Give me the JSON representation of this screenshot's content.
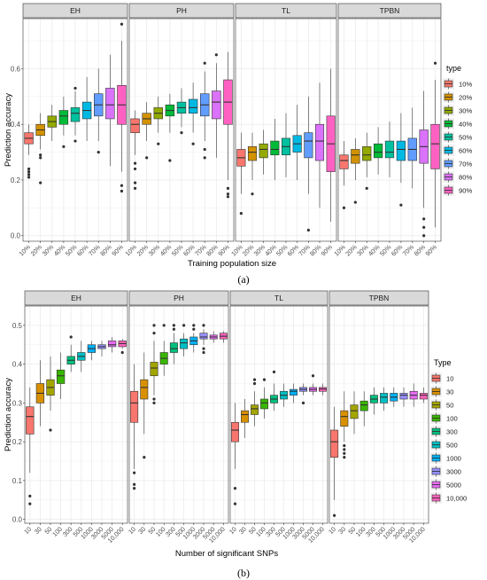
{
  "chart_data": [
    {
      "type": "box",
      "panel_label": "(a)",
      "ylabel": "Prediction accuracy",
      "xlabel": "Training population size",
      "categories": [
        "10%",
        "20%",
        "30%",
        "40%",
        "50%",
        "60%",
        "70%",
        "80%",
        "90%"
      ],
      "ylim": [
        -0.02,
        0.78
      ],
      "yticks": [
        0.0,
        0.2,
        0.4,
        0.6
      ],
      "ytick_labels": [
        "0.0",
        "0.2",
        "0.4",
        "0.6"
      ],
      "grid": true,
      "legend": {
        "title": "type",
        "position": "right",
        "labels": [
          "10%",
          "20%",
          "30%",
          "40%",
          "50%",
          "60%",
          "70%",
          "80%",
          "90%"
        ],
        "colors": [
          "#F8766D",
          "#D39200",
          "#93AA00",
          "#00BA38",
          "#00C19F",
          "#00B9E3",
          "#619CFF",
          "#DB72FB",
          "#FF61C3"
        ]
      },
      "facets": [
        {
          "label": "EH",
          "boxes": [
            {
              "q1": 0.33,
              "median": 0.35,
              "q3": 0.37,
              "lo": 0.29,
              "hi": 0.4,
              "outliers": [
                0.24,
                0.23,
                0.22,
                0.21
              ]
            },
            {
              "q1": 0.36,
              "median": 0.38,
              "q3": 0.4,
              "lo": 0.31,
              "hi": 0.44,
              "outliers": [
                0.29,
                0.28,
                0.19
              ]
            },
            {
              "q1": 0.39,
              "median": 0.41,
              "q3": 0.43,
              "lo": 0.34,
              "hi": 0.47,
              "outliers": []
            },
            {
              "q1": 0.4,
              "median": 0.43,
              "q3": 0.45,
              "lo": 0.36,
              "hi": 0.5,
              "outliers": [
                0.32
              ]
            },
            {
              "q1": 0.41,
              "median": 0.44,
              "q3": 0.46,
              "lo": 0.36,
              "hi": 0.52,
              "outliers": [
                0.53,
                0.34
              ]
            },
            {
              "q1": 0.42,
              "median": 0.45,
              "q3": 0.48,
              "lo": 0.34,
              "hi": 0.57,
              "outliers": []
            },
            {
              "q1": 0.43,
              "median": 0.47,
              "q3": 0.51,
              "lo": 0.34,
              "hi": 0.6,
              "outliers": [
                0.3
              ]
            },
            {
              "q1": 0.42,
              "median": 0.47,
              "q3": 0.53,
              "lo": 0.25,
              "hi": 0.65,
              "outliers": []
            },
            {
              "q1": 0.4,
              "median": 0.47,
              "q3": 0.54,
              "lo": 0.23,
              "hi": 0.7,
              "outliers": [
                0.76,
                0.18,
                0.16
              ]
            }
          ]
        },
        {
          "label": "PH",
          "boxes": [
            {
              "q1": 0.37,
              "median": 0.4,
              "q3": 0.42,
              "lo": 0.29,
              "hi": 0.45,
              "outliers": [
                0.26,
                0.24,
                0.19,
                0.17
              ]
            },
            {
              "q1": 0.4,
              "median": 0.42,
              "q3": 0.44,
              "lo": 0.34,
              "hi": 0.48,
              "outliers": [
                0.28
              ]
            },
            {
              "q1": 0.42,
              "median": 0.44,
              "q3": 0.46,
              "lo": 0.37,
              "hi": 0.5,
              "outliers": [
                0.33
              ]
            },
            {
              "q1": 0.43,
              "median": 0.45,
              "q3": 0.47,
              "lo": 0.37,
              "hi": 0.51,
              "outliers": [
                0.27
              ]
            },
            {
              "q1": 0.44,
              "median": 0.46,
              "q3": 0.48,
              "lo": 0.39,
              "hi": 0.53,
              "outliers": [
                0.37
              ]
            },
            {
              "q1": 0.44,
              "median": 0.46,
              "q3": 0.49,
              "lo": 0.37,
              "hi": 0.55,
              "outliers": [
                0.33
              ]
            },
            {
              "q1": 0.43,
              "median": 0.47,
              "q3": 0.51,
              "lo": 0.34,
              "hi": 0.59,
              "outliers": [
                0.62,
                0.31,
                0.28
              ]
            },
            {
              "q1": 0.42,
              "median": 0.48,
              "q3": 0.52,
              "lo": 0.28,
              "hi": 0.62,
              "outliers": [
                0.65
              ]
            },
            {
              "q1": 0.4,
              "median": 0.48,
              "q3": 0.56,
              "lo": 0.2,
              "hi": 0.66,
              "outliers": [
                0.17,
                0.15,
                0.14
              ]
            }
          ]
        },
        {
          "label": "TL",
          "boxes": [
            {
              "q1": 0.25,
              "median": 0.28,
              "q3": 0.31,
              "lo": 0.15,
              "hi": 0.37,
              "outliers": [
                0.08
              ]
            },
            {
              "q1": 0.27,
              "median": 0.3,
              "q3": 0.32,
              "lo": 0.2,
              "hi": 0.37,
              "outliers": [
                0.15
              ]
            },
            {
              "q1": 0.28,
              "median": 0.31,
              "q3": 0.33,
              "lo": 0.22,
              "hi": 0.38,
              "outliers": []
            },
            {
              "q1": 0.29,
              "median": 0.31,
              "q3": 0.34,
              "lo": 0.2,
              "hi": 0.42,
              "outliers": []
            },
            {
              "q1": 0.29,
              "median": 0.32,
              "q3": 0.35,
              "lo": 0.21,
              "hi": 0.44,
              "outliers": []
            },
            {
              "q1": 0.3,
              "median": 0.33,
              "q3": 0.36,
              "lo": 0.2,
              "hi": 0.47,
              "outliers": []
            },
            {
              "q1": 0.28,
              "median": 0.34,
              "q3": 0.37,
              "lo": 0.15,
              "hi": 0.5,
              "outliers": [
                0.02
              ]
            },
            {
              "q1": 0.27,
              "median": 0.34,
              "q3": 0.4,
              "lo": 0.1,
              "hi": 0.55,
              "outliers": []
            },
            {
              "q1": 0.23,
              "median": 0.33,
              "q3": 0.43,
              "lo": 0.05,
              "hi": 0.6,
              "outliers": []
            }
          ]
        },
        {
          "label": "TPBN",
          "boxes": [
            {
              "q1": 0.24,
              "median": 0.27,
              "q3": 0.29,
              "lo": 0.18,
              "hi": 0.34,
              "outliers": [
                0.1
              ]
            },
            {
              "q1": 0.26,
              "median": 0.29,
              "q3": 0.31,
              "lo": 0.2,
              "hi": 0.35,
              "outliers": [
                0.12
              ]
            },
            {
              "q1": 0.27,
              "median": 0.29,
              "q3": 0.32,
              "lo": 0.21,
              "hi": 0.37,
              "outliers": [
                0.17
              ]
            },
            {
              "q1": 0.28,
              "median": 0.3,
              "q3": 0.33,
              "lo": 0.22,
              "hi": 0.39,
              "outliers": []
            },
            {
              "q1": 0.28,
              "median": 0.3,
              "q3": 0.34,
              "lo": 0.21,
              "hi": 0.41,
              "outliers": []
            },
            {
              "q1": 0.27,
              "median": 0.31,
              "q3": 0.34,
              "lo": 0.19,
              "hi": 0.44,
              "outliers": [
                0.11
              ]
            },
            {
              "q1": 0.27,
              "median": 0.31,
              "q3": 0.35,
              "lo": 0.17,
              "hi": 0.46,
              "outliers": []
            },
            {
              "q1": 0.26,
              "median": 0.32,
              "q3": 0.38,
              "lo": 0.1,
              "hi": 0.52,
              "outliers": [
                0.06,
                0.03,
                0.0
              ]
            },
            {
              "q1": 0.24,
              "median": 0.33,
              "q3": 0.4,
              "lo": 0.03,
              "hi": 0.56,
              "outliers": [
                0.62
              ]
            }
          ]
        }
      ]
    },
    {
      "type": "box",
      "panel_label": "(b)",
      "ylabel": "Prediction accuracy",
      "xlabel": "Number of significant SNPs",
      "categories": [
        "10",
        "30",
        "50",
        "100",
        "300",
        "500",
        "1000",
        "3000",
        "5000",
        "10,000"
      ],
      "ylim": [
        -0.01,
        0.55
      ],
      "yticks": [
        0.0,
        0.1,
        0.2,
        0.3,
        0.4,
        0.5
      ],
      "ytick_labels": [
        "0.0",
        "0.1",
        "0.2",
        "0.3",
        "0.4",
        "0.5"
      ],
      "grid": true,
      "legend": {
        "title": "Type",
        "position": "right",
        "labels": [
          "10",
          "30",
          "50",
          "100",
          "300",
          "500",
          "1000",
          "3000",
          "5000",
          "10,000"
        ],
        "colors": [
          "#F8766D",
          "#D89000",
          "#A3A500",
          "#39B600",
          "#00BF7D",
          "#00BFC4",
          "#00B0F6",
          "#9590FF",
          "#E76BF3",
          "#FF62BC"
        ]
      },
      "facets": [
        {
          "label": "EH",
          "boxes": [
            {
              "q1": 0.22,
              "median": 0.265,
              "q3": 0.29,
              "lo": 0.12,
              "hi": 0.34,
              "outliers": [
                0.06,
                0.04
              ]
            },
            {
              "q1": 0.3,
              "median": 0.325,
              "q3": 0.35,
              "lo": 0.24,
              "hi": 0.41,
              "outliers": []
            },
            {
              "q1": 0.32,
              "median": 0.34,
              "q3": 0.36,
              "lo": 0.28,
              "hi": 0.42,
              "outliers": [
                0.23
              ]
            },
            {
              "q1": 0.35,
              "median": 0.37,
              "q3": 0.385,
              "lo": 0.31,
              "hi": 0.43,
              "outliers": []
            },
            {
              "q1": 0.4,
              "median": 0.41,
              "q3": 0.42,
              "lo": 0.38,
              "hi": 0.45,
              "outliers": [
                0.47
              ]
            },
            {
              "q1": 0.41,
              "median": 0.42,
              "q3": 0.43,
              "lo": 0.38,
              "hi": 0.46,
              "outliers": []
            },
            {
              "q1": 0.43,
              "median": 0.44,
              "q3": 0.45,
              "lo": 0.41,
              "hi": 0.46,
              "outliers": []
            },
            {
              "q1": 0.44,
              "median": 0.445,
              "q3": 0.45,
              "lo": 0.42,
              "hi": 0.46,
              "outliers": []
            },
            {
              "q1": 0.445,
              "median": 0.45,
              "q3": 0.46,
              "lo": 0.43,
              "hi": 0.47,
              "outliers": []
            },
            {
              "q1": 0.445,
              "median": 0.453,
              "q3": 0.46,
              "lo": 0.44,
              "hi": 0.465,
              "outliers": [
                0.43
              ]
            }
          ]
        },
        {
          "label": "PH",
          "boxes": [
            {
              "q1": 0.25,
              "median": 0.3,
              "q3": 0.33,
              "lo": 0.13,
              "hi": 0.4,
              "outliers": [
                0.12,
                0.09,
                0.08
              ]
            },
            {
              "q1": 0.31,
              "median": 0.34,
              "q3": 0.36,
              "lo": 0.22,
              "hi": 0.43,
              "outliers": [
                0.16
              ]
            },
            {
              "q1": 0.37,
              "median": 0.39,
              "q3": 0.405,
              "lo": 0.32,
              "hi": 0.46,
              "outliers": [
                0.5,
                0.48,
                0.31,
                0.3
              ]
            },
            {
              "q1": 0.4,
              "median": 0.415,
              "q3": 0.43,
              "lo": 0.37,
              "hi": 0.46,
              "outliers": [
                0.5
              ]
            },
            {
              "q1": 0.43,
              "median": 0.44,
              "q3": 0.455,
              "lo": 0.4,
              "hi": 0.48,
              "outliers": [
                0.5,
                0.49
              ]
            },
            {
              "q1": 0.44,
              "median": 0.455,
              "q3": 0.465,
              "lo": 0.42,
              "hi": 0.48,
              "outliers": [
                0.5
              ]
            },
            {
              "q1": 0.45,
              "median": 0.46,
              "q3": 0.47,
              "lo": 0.43,
              "hi": 0.48,
              "outliers": [
                0.5,
                0.49
              ]
            },
            {
              "q1": 0.465,
              "median": 0.47,
              "q3": 0.48,
              "lo": 0.45,
              "hi": 0.49,
              "outliers": [
                0.5,
                0.44,
                0.43
              ]
            },
            {
              "q1": 0.465,
              "median": 0.47,
              "q3": 0.475,
              "lo": 0.455,
              "hi": 0.485,
              "outliers": []
            },
            {
              "q1": 0.465,
              "median": 0.472,
              "q3": 0.48,
              "lo": 0.455,
              "hi": 0.485,
              "outliers": []
            }
          ]
        },
        {
          "label": "TL",
          "boxes": [
            {
              "q1": 0.2,
              "median": 0.23,
              "q3": 0.25,
              "lo": 0.13,
              "hi": 0.3,
              "outliers": [
                0.08,
                0.04
              ]
            },
            {
              "q1": 0.25,
              "median": 0.27,
              "q3": 0.28,
              "lo": 0.21,
              "hi": 0.31,
              "outliers": []
            },
            {
              "q1": 0.27,
              "median": 0.285,
              "q3": 0.295,
              "lo": 0.24,
              "hi": 0.33,
              "outliers": [
                0.36,
                0.35
              ]
            },
            {
              "q1": 0.285,
              "median": 0.3,
              "q3": 0.31,
              "lo": 0.26,
              "hi": 0.34,
              "outliers": [
                0.36
              ]
            },
            {
              "q1": 0.3,
              "median": 0.31,
              "q3": 0.32,
              "lo": 0.28,
              "hi": 0.35,
              "outliers": [
                0.38
              ]
            },
            {
              "q1": 0.31,
              "median": 0.32,
              "q3": 0.33,
              "lo": 0.29,
              "hi": 0.35,
              "outliers": []
            },
            {
              "q1": 0.32,
              "median": 0.33,
              "q3": 0.335,
              "lo": 0.3,
              "hi": 0.35,
              "outliers": []
            },
            {
              "q1": 0.33,
              "median": 0.335,
              "q3": 0.34,
              "lo": 0.32,
              "hi": 0.35,
              "outliers": [
                0.3
              ]
            },
            {
              "q1": 0.33,
              "median": 0.335,
              "q3": 0.34,
              "lo": 0.32,
              "hi": 0.35,
              "outliers": [
                0.37
              ]
            },
            {
              "q1": 0.33,
              "median": 0.336,
              "q3": 0.34,
              "lo": 0.32,
              "hi": 0.35,
              "outliers": []
            }
          ]
        },
        {
          "label": "TPBN",
          "boxes": [
            {
              "q1": 0.16,
              "median": 0.2,
              "q3": 0.23,
              "lo": 0.05,
              "hi": 0.29,
              "outliers": [
                0.01
              ]
            },
            {
              "q1": 0.24,
              "median": 0.265,
              "q3": 0.28,
              "lo": 0.2,
              "hi": 0.33,
              "outliers": [
                0.19,
                0.18,
                0.17,
                0.16
              ]
            },
            {
              "q1": 0.26,
              "median": 0.28,
              "q3": 0.295,
              "lo": 0.22,
              "hi": 0.33,
              "outliers": []
            },
            {
              "q1": 0.28,
              "median": 0.295,
              "q3": 0.305,
              "lo": 0.24,
              "hi": 0.33,
              "outliers": []
            },
            {
              "q1": 0.3,
              "median": 0.31,
              "q3": 0.32,
              "lo": 0.27,
              "hi": 0.34,
              "outliers": []
            },
            {
              "q1": 0.3,
              "median": 0.315,
              "q3": 0.325,
              "lo": 0.28,
              "hi": 0.34,
              "outliers": []
            },
            {
              "q1": 0.305,
              "median": 0.315,
              "q3": 0.325,
              "lo": 0.29,
              "hi": 0.34,
              "outliers": []
            },
            {
              "q1": 0.31,
              "median": 0.32,
              "q3": 0.325,
              "lo": 0.29,
              "hi": 0.34,
              "outliers": []
            },
            {
              "q1": 0.31,
              "median": 0.32,
              "q3": 0.33,
              "lo": 0.29,
              "hi": 0.35,
              "outliers": []
            },
            {
              "q1": 0.31,
              "median": 0.32,
              "q3": 0.325,
              "lo": 0.3,
              "hi": 0.34,
              "outliers": []
            }
          ]
        }
      ]
    }
  ]
}
